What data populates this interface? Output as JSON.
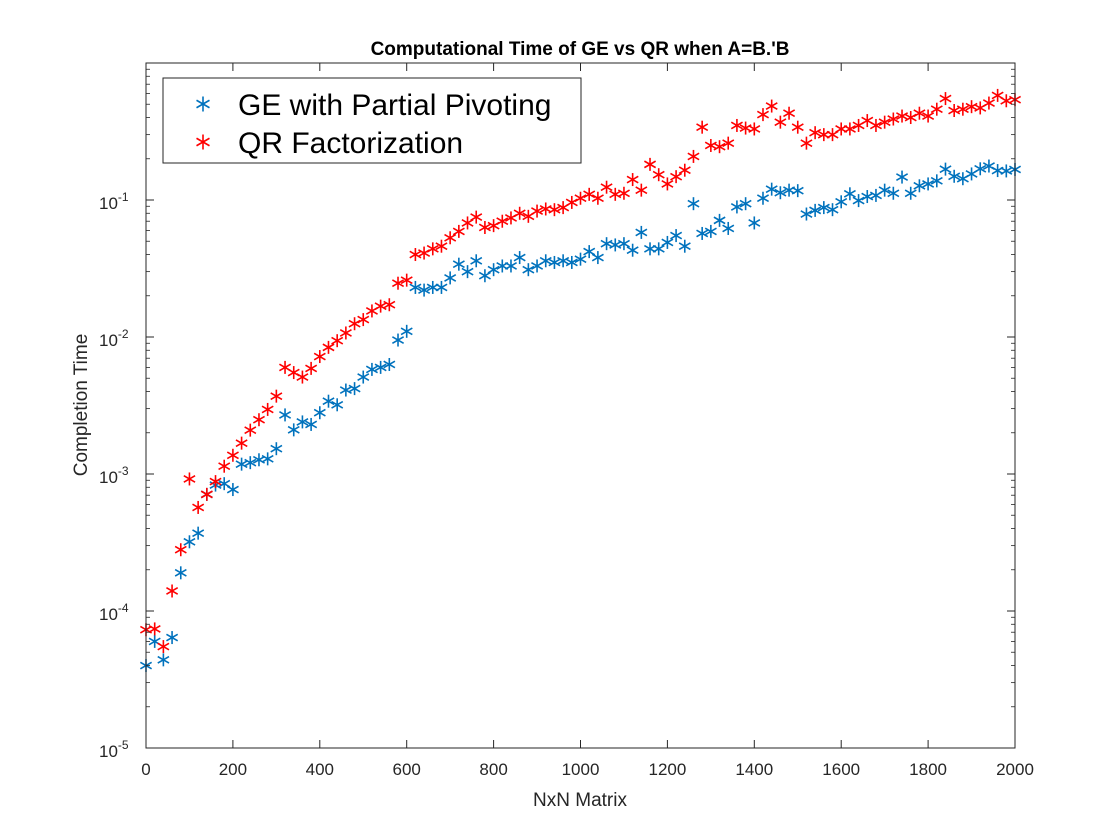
{
  "chart_data": {
    "type": "scatter",
    "title": "Computational Time of GE vs QR when A=B.'B",
    "xlabel": "NxN Matrix",
    "ylabel": "Completion Time",
    "xlim": [
      0,
      2000
    ],
    "ylim": [
      1e-05,
      1
    ],
    "yscale": "log",
    "grid": false,
    "legend_position": "top-left",
    "x_ticks": [
      "0",
      "200",
      "400",
      "600",
      "800",
      "1000",
      "1200",
      "1400",
      "1600",
      "1800",
      "2000"
    ],
    "y_ticks": [
      {
        "base": "10",
        "exp": "-5"
      },
      {
        "base": "10",
        "exp": "-4"
      },
      {
        "base": "10",
        "exp": "-3"
      },
      {
        "base": "10",
        "exp": "-2"
      },
      {
        "base": "10",
        "exp": "-1"
      }
    ],
    "marker": "asterisk",
    "series": [
      {
        "name": "GE with Partial Pivoting",
        "color": "#0072BD",
        "x": [
          0,
          20,
          40,
          60,
          80,
          100,
          120,
          140,
          160,
          180,
          200,
          220,
          240,
          260,
          280,
          300,
          320,
          340,
          360,
          380,
          400,
          420,
          440,
          460,
          480,
          500,
          520,
          540,
          560,
          580,
          600,
          620,
          640,
          660,
          680,
          700,
          720,
          740,
          760,
          780,
          800,
          820,
          840,
          860,
          880,
          900,
          920,
          940,
          960,
          980,
          1000,
          1020,
          1040,
          1060,
          1080,
          1100,
          1120,
          1140,
          1160,
          1180,
          1200,
          1220,
          1240,
          1260,
          1280,
          1300,
          1320,
          1340,
          1360,
          1380,
          1400,
          1420,
          1440,
          1460,
          1480,
          1500,
          1520,
          1540,
          1560,
          1580,
          1600,
          1620,
          1640,
          1660,
          1680,
          1700,
          1720,
          1740,
          1760,
          1780,
          1800,
          1820,
          1840,
          1860,
          1880,
          1900,
          1920,
          1940,
          1960,
          1980,
          2000
        ],
        "values": [
          4e-05,
          6e-05,
          4.4e-05,
          6.4e-05,
          0.00019,
          0.00032,
          0.00037,
          0.00071,
          0.00083,
          0.00085,
          0.00077,
          0.00118,
          0.00121,
          0.00127,
          0.00129,
          0.00153,
          0.0027,
          0.0021,
          0.0024,
          0.0023,
          0.0028,
          0.0034,
          0.0032,
          0.0041,
          0.0042,
          0.0051,
          0.0058,
          0.006,
          0.0063,
          0.0095,
          0.011,
          0.023,
          0.022,
          0.023,
          0.023,
          0.027,
          0.034,
          0.03,
          0.036,
          0.028,
          0.031,
          0.033,
          0.033,
          0.038,
          0.031,
          0.033,
          0.036,
          0.035,
          0.036,
          0.035,
          0.037,
          0.042,
          0.038,
          0.048,
          0.047,
          0.048,
          0.043,
          0.058,
          0.044,
          0.044,
          0.049,
          0.055,
          0.046,
          0.094,
          0.057,
          0.059,
          0.071,
          0.062,
          0.089,
          0.094,
          0.068,
          0.103,
          0.12,
          0.113,
          0.118,
          0.117,
          0.079,
          0.084,
          0.088,
          0.085,
          0.097,
          0.111,
          0.099,
          0.106,
          0.108,
          0.118,
          0.112,
          0.147,
          0.112,
          0.127,
          0.131,
          0.138,
          0.168,
          0.149,
          0.143,
          0.155,
          0.169,
          0.177,
          0.164,
          0.163,
          0.167
        ]
      },
      {
        "name": "QR Factorization",
        "color": "#FF0000",
        "x": [
          0,
          20,
          40,
          60,
          80,
          100,
          120,
          140,
          160,
          180,
          200,
          220,
          240,
          260,
          280,
          300,
          320,
          340,
          360,
          380,
          400,
          420,
          440,
          460,
          480,
          500,
          520,
          540,
          560,
          580,
          600,
          620,
          640,
          660,
          680,
          700,
          720,
          740,
          760,
          780,
          800,
          820,
          840,
          860,
          880,
          900,
          920,
          940,
          960,
          980,
          1000,
          1020,
          1040,
          1060,
          1080,
          1100,
          1120,
          1140,
          1160,
          1180,
          1200,
          1220,
          1240,
          1260,
          1280,
          1300,
          1320,
          1340,
          1360,
          1380,
          1400,
          1420,
          1440,
          1460,
          1480,
          1500,
          1520,
          1540,
          1560,
          1580,
          1600,
          1620,
          1640,
          1660,
          1680,
          1700,
          1720,
          1740,
          1760,
          1780,
          1800,
          1820,
          1840,
          1860,
          1880,
          1900,
          1920,
          1940,
          1960,
          1980,
          2000
        ],
        "values": [
          7.3e-05,
          7.4e-05,
          5.5e-05,
          0.00014,
          0.00028,
          0.00092,
          0.00057,
          0.00071,
          0.00088,
          0.00114,
          0.00137,
          0.00168,
          0.00209,
          0.00249,
          0.00296,
          0.0037,
          0.006,
          0.0055,
          0.0051,
          0.0059,
          0.0072,
          0.0084,
          0.0094,
          0.0107,
          0.0125,
          0.0134,
          0.0155,
          0.0168,
          0.0172,
          0.0247,
          0.026,
          0.04,
          0.041,
          0.044,
          0.046,
          0.053,
          0.059,
          0.068,
          0.075,
          0.063,
          0.065,
          0.07,
          0.074,
          0.08,
          0.076,
          0.083,
          0.086,
          0.085,
          0.088,
          0.096,
          0.103,
          0.11,
          0.103,
          0.124,
          0.11,
          0.112,
          0.141,
          0.118,
          0.182,
          0.153,
          0.131,
          0.148,
          0.165,
          0.208,
          0.34,
          0.25,
          0.245,
          0.26,
          0.35,
          0.335,
          0.33,
          0.42,
          0.485,
          0.37,
          0.43,
          0.34,
          0.26,
          0.31,
          0.3,
          0.3,
          0.33,
          0.33,
          0.35,
          0.38,
          0.35,
          0.37,
          0.39,
          0.41,
          0.4,
          0.43,
          0.41,
          0.46,
          0.55,
          0.45,
          0.46,
          0.48,
          0.47,
          0.51,
          0.58,
          0.53,
          0.54
        ]
      }
    ]
  }
}
